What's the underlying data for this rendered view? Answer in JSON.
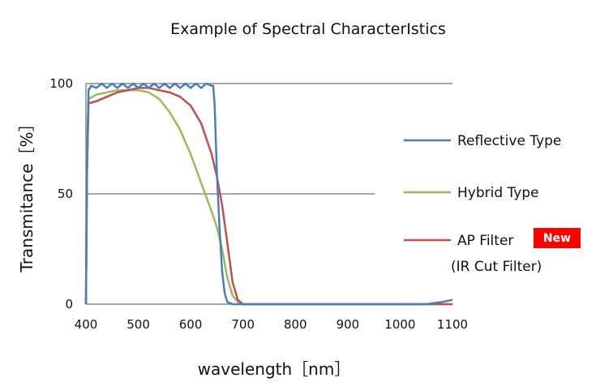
{
  "chart_data": {
    "type": "line",
    "title": "Example of Spectral CharacterIstics",
    "xlabel": "wavelength［nm］",
    "ylabel": "Transmitance［%］",
    "xlim": [
      400,
      1100
    ],
    "ylim": [
      0,
      100
    ],
    "x_ticks": [
      "400",
      "500",
      "600",
      "700",
      "800",
      "900",
      "1000",
      "1100"
    ],
    "y_ticks": [
      "0",
      "50",
      "100"
    ],
    "grid": "horizontal",
    "legend_position": "right",
    "series": [
      {
        "name": "Reflective Type",
        "color": "#4a7ebb",
        "x": [
          400,
          402,
          405,
          410,
          420,
          430,
          440,
          450,
          460,
          470,
          480,
          490,
          500,
          510,
          520,
          530,
          540,
          550,
          560,
          570,
          580,
          590,
          600,
          610,
          620,
          630,
          640,
          643,
          646,
          650,
          655,
          660,
          665,
          670,
          680,
          700,
          800,
          900,
          1000,
          1050,
          1080,
          1100
        ],
        "y": [
          0,
          60,
          97,
          99,
          98,
          100,
          98,
          100,
          98,
          100,
          98,
          100,
          98,
          100,
          98,
          100,
          98,
          100,
          98,
          100,
          98,
          100,
          98,
          100,
          98,
          100,
          99,
          99,
          90,
          60,
          35,
          15,
          5,
          1,
          0,
          0,
          0,
          0,
          0,
          0,
          1,
          2
        ]
      },
      {
        "name": "Hybrid Type",
        "color": "#9bbb59",
        "x": [
          400,
          402,
          405,
          420,
          440,
          460,
          480,
          500,
          520,
          540,
          560,
          580,
          600,
          620,
          640,
          650,
          660,
          670,
          680,
          690,
          700,
          800,
          900,
          1000,
          1100
        ],
        "y": [
          0,
          70,
          93,
          95,
          96,
          97,
          97,
          97,
          96,
          93,
          87,
          79,
          68,
          55,
          42,
          35,
          25,
          12,
          4,
          1,
          0,
          0,
          0,
          0,
          0
        ]
      },
      {
        "name": "AP Filter",
        "color": "#c0504d",
        "x": [
          400,
          402,
          405,
          420,
          440,
          460,
          480,
          500,
          520,
          540,
          560,
          580,
          600,
          620,
          640,
          650,
          660,
          670,
          680,
          690,
          700,
          720,
          800,
          900,
          1000,
          1100
        ],
        "y": [
          0,
          60,
          91,
          92,
          94,
          96,
          97,
          98,
          98,
          97,
          96,
          94,
          90,
          82,
          68,
          58,
          45,
          28,
          10,
          2,
          0,
          0,
          0,
          0,
          0,
          0
        ]
      }
    ]
  },
  "legend": {
    "reflective": "Reflective Type",
    "hybrid": "Hybrid Type",
    "ap_filter": "AP Filter",
    "ap_filter_sub": "(IR Cut Filter)",
    "badge": "New",
    "badge_color": "#ff0000"
  }
}
